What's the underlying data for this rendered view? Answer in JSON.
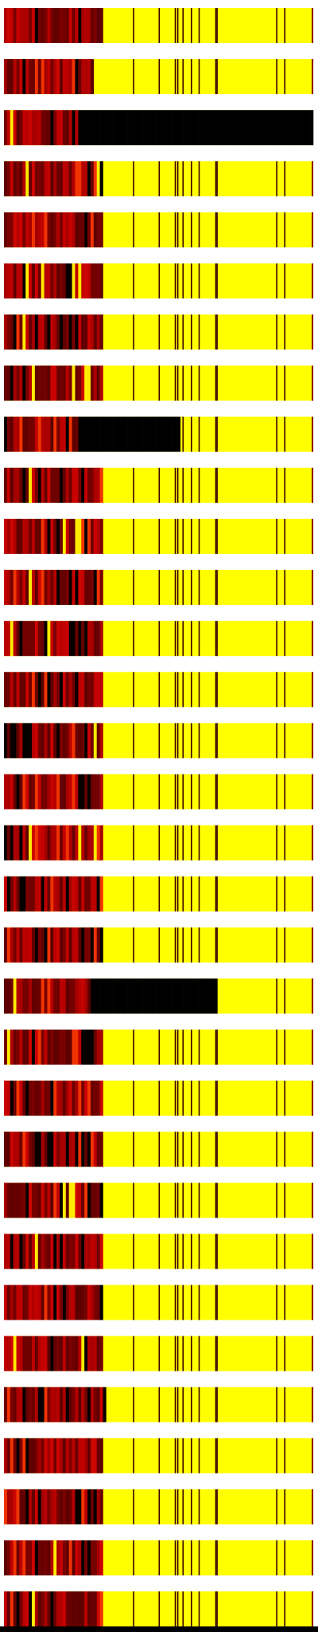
{
  "chart_data": {
    "type": "heatmap",
    "title": "",
    "xlabel": "",
    "ylabel": "",
    "grid": false,
    "legend": "none",
    "value_range": [
      0,
      1
    ],
    "colorscale": [
      {
        "stop": 0.0,
        "color": "#000000"
      },
      {
        "stop": 0.35,
        "color": "#6b0000"
      },
      {
        "stop": 0.6,
        "color": "#c80000"
      },
      {
        "stop": 0.8,
        "color": "#ff4400"
      },
      {
        "stop": 1.0,
        "color": "#ffff00"
      }
    ],
    "n_rows": 32,
    "n_cols": 100,
    "rows": [
      {
        "fill_level": 0.32,
        "masked_from": null,
        "masked_to": null
      },
      {
        "fill_level": 0.29,
        "masked_from": null,
        "masked_to": null
      },
      {
        "fill_level": 0.25,
        "masked_from": 0.25,
        "masked_to": 1.0
      },
      {
        "fill_level": 0.32,
        "masked_from": null,
        "masked_to": null
      },
      {
        "fill_level": 0.32,
        "masked_from": null,
        "masked_to": null
      },
      {
        "fill_level": 0.32,
        "masked_from": null,
        "masked_to": null
      },
      {
        "fill_level": 0.32,
        "masked_from": null,
        "masked_to": null
      },
      {
        "fill_level": 0.32,
        "masked_from": null,
        "masked_to": null
      },
      {
        "fill_level": 0.25,
        "masked_from": 0.25,
        "masked_to": 0.57
      },
      {
        "fill_level": 0.32,
        "masked_from": null,
        "masked_to": null
      },
      {
        "fill_level": 0.32,
        "masked_from": null,
        "masked_to": null
      },
      {
        "fill_level": 0.32,
        "masked_from": null,
        "masked_to": null
      },
      {
        "fill_level": 0.32,
        "masked_from": null,
        "masked_to": null
      },
      {
        "fill_level": 0.32,
        "masked_from": null,
        "masked_to": null
      },
      {
        "fill_level": 0.32,
        "masked_from": null,
        "masked_to": null
      },
      {
        "fill_level": 0.32,
        "masked_from": null,
        "masked_to": null
      },
      {
        "fill_level": 0.32,
        "masked_from": null,
        "masked_to": null
      },
      {
        "fill_level": 0.32,
        "masked_from": null,
        "masked_to": null
      },
      {
        "fill_level": 0.32,
        "masked_from": null,
        "masked_to": null
      },
      {
        "fill_level": 0.28,
        "masked_from": 0.28,
        "masked_to": 0.69
      },
      {
        "fill_level": 0.32,
        "masked_from": null,
        "masked_to": null
      },
      {
        "fill_level": 0.32,
        "masked_from": null,
        "masked_to": null
      },
      {
        "fill_level": 0.32,
        "masked_from": null,
        "masked_to": null
      },
      {
        "fill_level": 0.32,
        "masked_from": null,
        "masked_to": null
      },
      {
        "fill_level": 0.32,
        "masked_from": null,
        "masked_to": null
      },
      {
        "fill_level": 0.32,
        "masked_from": null,
        "masked_to": null
      },
      {
        "fill_level": 0.32,
        "masked_from": null,
        "masked_to": null
      },
      {
        "fill_level": 0.33,
        "masked_from": null,
        "masked_to": null
      },
      {
        "fill_level": 0.32,
        "masked_from": null,
        "masked_to": null
      },
      {
        "fill_level": 0.32,
        "masked_from": null,
        "masked_to": null
      },
      {
        "fill_level": 0.32,
        "masked_from": null,
        "masked_to": null
      },
      {
        "fill_level": 0.32,
        "masked_from": null,
        "masked_to": null
      }
    ],
    "shared_dark_columns": [
      0.417,
      0.5,
      0.552,
      0.56,
      0.577,
      0.604,
      0.629,
      0.683,
      0.687,
      0.88,
      0.906,
      0.995
    ]
  }
}
